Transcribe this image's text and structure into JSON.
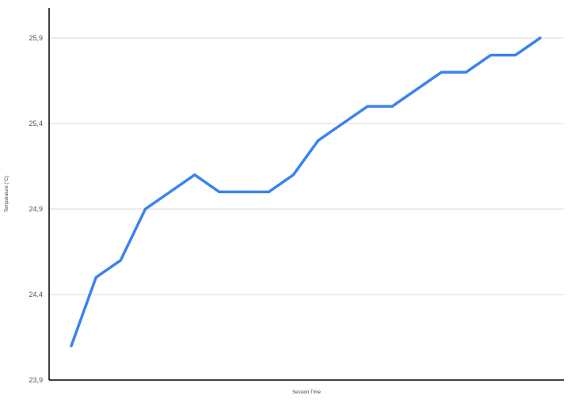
{
  "chart_data": {
    "type": "line",
    "title": "",
    "xlabel": "Session Time",
    "ylabel": "Temperature (°C)",
    "ylim": [
      23.9,
      26.0
    ],
    "yticks": [
      23.9,
      24.4,
      24.9,
      25.4,
      25.9
    ],
    "ytick_labels": [
      "23,9",
      "24,4",
      "24,9",
      "25,4",
      "25,9"
    ],
    "grid": true,
    "legend": "none",
    "series": [
      {
        "values": [
          24.1,
          24.5,
          24.6,
          24.9,
          25.0,
          25.1,
          25.0,
          25.0,
          25.0,
          25.1,
          25.3,
          25.4,
          25.5,
          25.5,
          25.6,
          25.7,
          25.7,
          25.8,
          25.8,
          25.9
        ],
        "color": "#3b82f0"
      }
    ]
  }
}
